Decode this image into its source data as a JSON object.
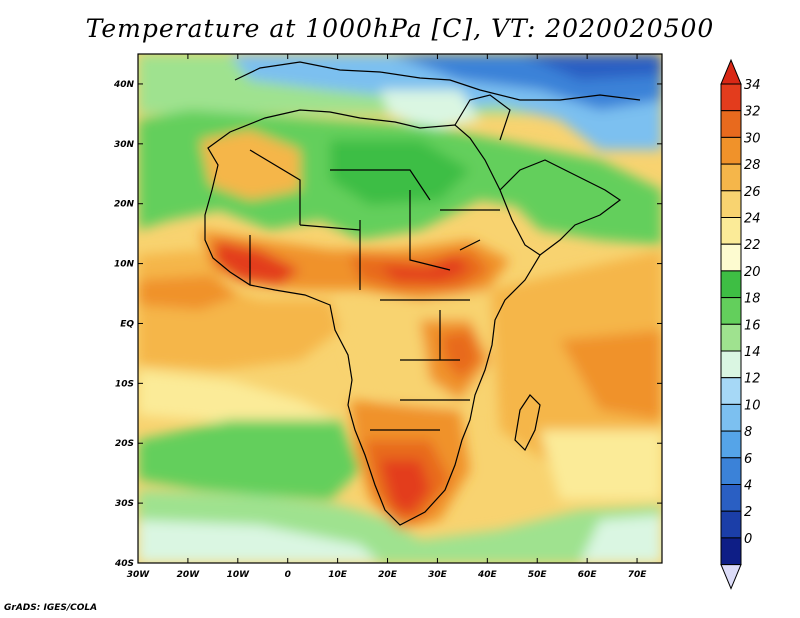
{
  "title": "Temperature at 1000hPa [C], VT: 2020020500",
  "credit": "GrADS: IGES/COLA",
  "map": {
    "lon_ticks": [
      "30W",
      "20W",
      "10W",
      "0",
      "10E",
      "20E",
      "30E",
      "40E",
      "50E",
      "60E",
      "70E"
    ],
    "lat_ticks": [
      "40N",
      "30N",
      "20N",
      "10N",
      "EQ",
      "10S",
      "20S",
      "30S",
      "40S"
    ],
    "lon_range": [
      -30,
      75
    ],
    "lat_range": [
      -40,
      45
    ]
  },
  "colorbar": {
    "labels": [
      "34",
      "32",
      "30",
      "28",
      "26",
      "24",
      "22",
      "20",
      "18",
      "16",
      "14",
      "12",
      "10",
      "8",
      "6",
      "4",
      "2",
      "0"
    ],
    "colors": [
      "#e33c1d",
      "#e86a1e",
      "#f0922a",
      "#f5b64a",
      "#f8d370",
      "#fbeb98",
      "#fdfbd0",
      "#3ebe44",
      "#63cf5c",
      "#9fe28f",
      "#daf6e2",
      "#a6d8f6",
      "#7cc0f0",
      "#55a4e8",
      "#3b82d8",
      "#2a5fc3",
      "#1b3ea8",
      "#0e1e86"
    ],
    "top_color": "#d92816",
    "bottom_color": "#dcdcf8"
  }
}
